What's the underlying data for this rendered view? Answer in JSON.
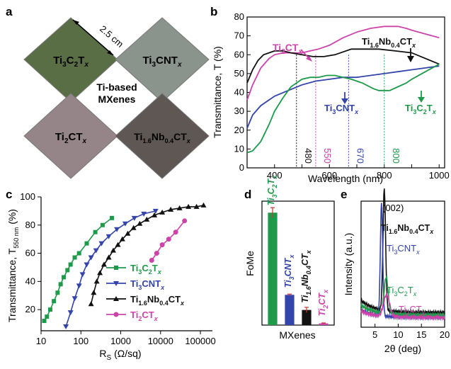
{
  "panel_labels": [
    "a",
    "b",
    "c",
    "d",
    "e"
  ],
  "photos": {
    "dimension": "2.5 cm",
    "center_label": [
      "Ti-based",
      "MXenes"
    ],
    "samples": [
      {
        "label": "Ti3C2Tx",
        "color": "#5a6e45"
      },
      {
        "label": "Ti3CNTx",
        "color": "#8a948d"
      },
      {
        "label": "Ti2CTx",
        "color": "#958589"
      },
      {
        "label": "Ti1.6Nb0.4CTx",
        "color": "#5e5753"
      }
    ]
  },
  "colors": {
    "Ti3C2Tx": "#1e9a4b",
    "Ti3CNTx": "#3344aa",
    "Ti2CTx": "#cc44aa",
    "Ti1.6Nb0.4CTx": "#111111"
  },
  "chart_data": [
    {
      "panel": "b",
      "type": "line",
      "xlabel": "Wavelength (nm)",
      "ylabel": "Transmittance, T (%)",
      "xlim": [
        300,
        1020
      ],
      "ylim": [
        0,
        80
      ],
      "xticks": [
        400,
        500,
        600,
        700,
        800,
        900,
        1000
      ],
      "yticks": [
        0,
        10,
        20,
        30,
        40,
        50,
        60,
        70,
        80
      ],
      "series": [
        {
          "name": "Ti2CTx",
          "color": "#cc44aa",
          "x": [
            300,
            320,
            350,
            380,
            400,
            430,
            460,
            480,
            500,
            530,
            560,
            600,
            650,
            700,
            750,
            800,
            850,
            880,
            900,
            950,
            1000
          ],
          "y": [
            36,
            44,
            53,
            58,
            60,
            61,
            61,
            61,
            61,
            62,
            63,
            65,
            69,
            72,
            74,
            75,
            75,
            74,
            73,
            71,
            69
          ]
        },
        {
          "name": "Ti1.6Nb0.4CTx",
          "color": "#111111",
          "x": [
            300,
            320,
            340,
            360,
            380,
            400,
            430,
            460,
            500,
            540,
            580,
            620,
            680,
            720,
            780,
            840,
            900,
            950,
            1000
          ],
          "y": [
            45,
            52,
            57,
            60,
            61,
            62,
            62,
            61,
            60,
            59,
            59,
            60,
            63,
            63,
            63,
            62,
            61,
            58,
            55
          ]
        },
        {
          "name": "Ti3CNTx",
          "color": "#3344aa",
          "x": [
            300,
            320,
            350,
            400,
            450,
            500,
            550,
            600,
            650,
            700,
            750,
            800,
            850,
            900,
            950,
            1000
          ],
          "y": [
            21,
            28,
            33,
            38,
            41,
            44,
            46,
            47,
            48,
            48,
            49,
            50,
            51,
            52,
            53,
            54
          ]
        },
        {
          "name": "Ti3C2Tx",
          "color": "#1e9a4b",
          "x": [
            300,
            320,
            350,
            380,
            400,
            430,
            460,
            500,
            530,
            560,
            590,
            620,
            650,
            680,
            720,
            760,
            780,
            800,
            820,
            850,
            880,
            900,
            950,
            1000
          ],
          "y": [
            8,
            9,
            14,
            23,
            30,
            37,
            43,
            47,
            48,
            48,
            49,
            49,
            48,
            47,
            45,
            42,
            41,
            41,
            41,
            43,
            45,
            47,
            51,
            55
          ]
        }
      ],
      "markers": [
        {
          "x": 480,
          "label": "480",
          "color": "#111111"
        },
        {
          "x": 550,
          "label": "550",
          "color": "#cc44aa"
        },
        {
          "x": 670,
          "label": "670",
          "color": "#3344aa"
        },
        {
          "x": 800,
          "label": "800",
          "color": "#1e9a4b"
        }
      ]
    },
    {
      "panel": "c",
      "type": "scatter",
      "xlabel": "Rs (Ω/sq)",
      "ylabel": "Transmittance, T550 nm (%)",
      "xscale": "log",
      "xlim": [
        10,
        200000
      ],
      "ylim": [
        5,
        100
      ],
      "xticks": [
        10,
        100,
        1000,
        10000,
        100000
      ],
      "yticks": [
        20,
        40,
        60,
        80,
        100
      ],
      "series": [
        {
          "name": "Ti3C2Tx",
          "color": "#1e9a4b",
          "marker": "square",
          "x": [
            12,
            14,
            17,
            21,
            26,
            31,
            37,
            46,
            55,
            70,
            90,
            140,
            230,
            350,
            600
          ],
          "y": [
            12,
            15,
            20,
            26,
            32,
            38,
            43,
            48,
            52,
            57,
            60,
            67,
            75,
            80,
            85
          ]
        },
        {
          "name": "Ti3CNTx",
          "color": "#3344aa",
          "marker": "triangle-down",
          "x": [
            42,
            55,
            70,
            90,
            110,
            140,
            180,
            240,
            330,
            500,
            800,
            1300,
            2200,
            3800,
            7500
          ],
          "y": [
            8,
            18,
            28,
            37,
            45,
            52,
            57,
            62,
            67,
            72,
            77,
            81,
            85,
            88,
            90
          ]
        },
        {
          "name": "Ti1.6Nb0.4CTx",
          "color": "#111111",
          "marker": "triangle-up",
          "x": [
            180,
            210,
            250,
            300,
            380,
            500,
            650,
            850,
            1100,
            1500,
            2100,
            3000,
            4500,
            7000,
            11000,
            18000,
            30000,
            50000,
            80000,
            120000
          ],
          "y": [
            24,
            32,
            40,
            46,
            52,
            57,
            62,
            66,
            70,
            74,
            78,
            81,
            84,
            87,
            89,
            91,
            92,
            93,
            93,
            94
          ]
        },
        {
          "name": "Ti2CTx",
          "color": "#cc44aa",
          "marker": "circle",
          "x": [
            6000,
            8000,
            11000,
            16000,
            24000,
            40000
          ],
          "y": [
            55,
            60,
            66,
            70,
            75,
            83
          ]
        }
      ],
      "legend": "bottom-right",
      "legend_entries": [
        "Ti3C2Tx",
        "Ti3CNTx",
        "Ti1.6Nb0.4CTx",
        "Ti2CTx"
      ]
    },
    {
      "panel": "d",
      "type": "bar",
      "xlabel": "MXenes",
      "ylabel": "FoMe",
      "ylim": [
        0,
        8.6
      ],
      "categories": [
        "Ti3C2Tx",
        "Ti3CNTx",
        "Ti1.6Nb0.4CTx",
        "Ti2CTx"
      ],
      "values": [
        7.8,
        2.1,
        1.05,
        0.12
      ],
      "errors": [
        0.35,
        0.05,
        0.18,
        0.03
      ],
      "colors": [
        "#1e9a4b",
        "#3344aa",
        "#111111",
        "#cc44aa"
      ]
    },
    {
      "panel": "e",
      "type": "line",
      "xlabel": "2θ (deg)",
      "ylabel": "Intensity (a.u.)",
      "xlim": [
        2,
        20
      ],
      "xticks": [
        5,
        10,
        15,
        20
      ],
      "annotation": "(002)",
      "series": [
        {
          "name": "Ti1.6Nb0.4CTx",
          "color": "#111111",
          "center": 7.0,
          "width": 0.4,
          "height": 1.0,
          "base": 0.12,
          "decay": 0.1
        },
        {
          "name": "Ti3CNTx",
          "color": "#3344aa",
          "center": 6.4,
          "width": 0.35,
          "height": 0.92,
          "base": 0.08,
          "decay": 0.06
        },
        {
          "name": "Ti3C2Tx",
          "color": "#1e9a4b",
          "center": 7.4,
          "width": 0.6,
          "height": 0.3,
          "base": 0.1,
          "decay": 0.08
        },
        {
          "name": "Ti2CTx",
          "color": "#cc44aa",
          "center": 7.5,
          "width": 0.9,
          "height": 0.18,
          "base": 0.08,
          "decay": 0.05
        }
      ]
    }
  ]
}
